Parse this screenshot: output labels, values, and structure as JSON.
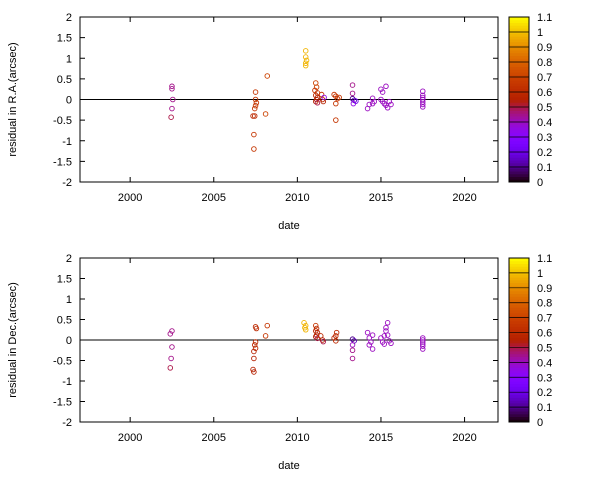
{
  "chart_data": [
    {
      "type": "scatter",
      "title": "",
      "xlabel": "date",
      "ylabel": "residual in R.A.(arcsec)",
      "xlim": [
        1997,
        2022
      ],
      "ylim": [
        -2,
        2
      ],
      "xticks": [
        "2000",
        "2005",
        "2010",
        "2015",
        "2020"
      ],
      "yticks": [
        "-2",
        "-1.5",
        "-1",
        "-0.5",
        "0",
        "0.5",
        "1",
        "1.5",
        "2"
      ],
      "reference_line": 0,
      "colorbar": {
        "range": [
          0,
          1.1
        ],
        "ticks": [
          "0",
          "0.1",
          "0.2",
          "0.3",
          "0.4",
          "0.5",
          "0.6",
          "0.7",
          "0.8",
          "0.9",
          "1",
          "1.1"
        ]
      },
      "points": [
        {
          "x": 2002.5,
          "y": 0.32,
          "c": 0.45
        },
        {
          "x": 2002.5,
          "y": 0.26,
          "c": 0.45
        },
        {
          "x": 2002.55,
          "y": 0.0,
          "c": 0.45
        },
        {
          "x": 2002.5,
          "y": -0.22,
          "c": 0.45
        },
        {
          "x": 2002.45,
          "y": -0.43,
          "c": 0.5
        },
        {
          "x": 2007.5,
          "y": 0.18,
          "c": 0.65
        },
        {
          "x": 2007.5,
          "y": 0.0,
          "c": 0.65
        },
        {
          "x": 2007.55,
          "y": -0.08,
          "c": 0.65
        },
        {
          "x": 2007.5,
          "y": -0.15,
          "c": 0.65
        },
        {
          "x": 2007.45,
          "y": -0.22,
          "c": 0.65
        },
        {
          "x": 2007.35,
          "y": -0.4,
          "c": 0.6
        },
        {
          "x": 2007.45,
          "y": -0.4,
          "c": 0.6
        },
        {
          "x": 2007.4,
          "y": -0.85,
          "c": 0.65
        },
        {
          "x": 2007.4,
          "y": -1.2,
          "c": 0.65
        },
        {
          "x": 2008.2,
          "y": 0.57,
          "c": 0.7
        },
        {
          "x": 2008.1,
          "y": -0.35,
          "c": 0.7
        },
        {
          "x": 2010.5,
          "y": 1.18,
          "c": 0.98
        },
        {
          "x": 2010.5,
          "y": 1.03,
          "c": 0.98
        },
        {
          "x": 2010.55,
          "y": 0.95,
          "c": 0.98
        },
        {
          "x": 2010.5,
          "y": 0.88,
          "c": 0.98
        },
        {
          "x": 2010.5,
          "y": 0.82,
          "c": 0.98
        },
        {
          "x": 2011.1,
          "y": 0.4,
          "c": 0.7
        },
        {
          "x": 2011.15,
          "y": 0.3,
          "c": 0.7
        },
        {
          "x": 2011.05,
          "y": 0.22,
          "c": 0.65
        },
        {
          "x": 2011.2,
          "y": 0.16,
          "c": 0.65
        },
        {
          "x": 2011.1,
          "y": 0.1,
          "c": 0.6
        },
        {
          "x": 2011.2,
          "y": 0.05,
          "c": 0.55
        },
        {
          "x": 2011.15,
          "y": 0.0,
          "c": 0.55
        },
        {
          "x": 2011.1,
          "y": -0.05,
          "c": 0.55
        },
        {
          "x": 2011.2,
          "y": -0.08,
          "c": 0.5
        },
        {
          "x": 2011.45,
          "y": 0.12,
          "c": 0.65
        },
        {
          "x": 2011.5,
          "y": 0.0,
          "c": 0.6
        },
        {
          "x": 2011.55,
          "y": -0.05,
          "c": 0.55
        },
        {
          "x": 2011.6,
          "y": 0.05,
          "c": 0.35
        },
        {
          "x": 2012.2,
          "y": 0.12,
          "c": 0.65
        },
        {
          "x": 2012.3,
          "y": 0.08,
          "c": 0.65
        },
        {
          "x": 2012.4,
          "y": 0.02,
          "c": 0.65
        },
        {
          "x": 2012.5,
          "y": 0.05,
          "c": 0.65
        },
        {
          "x": 2012.3,
          "y": -0.1,
          "c": 0.65
        },
        {
          "x": 2012.3,
          "y": -0.5,
          "c": 0.65
        },
        {
          "x": 2013.3,
          "y": 0.35,
          "c": 0.45
        },
        {
          "x": 2013.3,
          "y": 0.15,
          "c": 0.45
        },
        {
          "x": 2013.3,
          "y": 0.02,
          "c": 0.1
        },
        {
          "x": 2013.4,
          "y": -0.02,
          "c": 0.15
        },
        {
          "x": 2013.5,
          "y": -0.04,
          "c": 0.2
        },
        {
          "x": 2013.35,
          "y": -0.1,
          "c": 0.35
        },
        {
          "x": 2014.3,
          "y": -0.12,
          "c": 0.4
        },
        {
          "x": 2014.2,
          "y": -0.22,
          "c": 0.4
        },
        {
          "x": 2014.5,
          "y": 0.03,
          "c": 0.4
        },
        {
          "x": 2014.6,
          "y": -0.05,
          "c": 0.4
        },
        {
          "x": 2014.5,
          "y": -0.1,
          "c": 0.4
        },
        {
          "x": 2015.0,
          "y": 0.25,
          "c": 0.4
        },
        {
          "x": 2015.3,
          "y": 0.32,
          "c": 0.4
        },
        {
          "x": 2015.1,
          "y": 0.18,
          "c": 0.4
        },
        {
          "x": 2015.0,
          "y": 0.0,
          "c": 0.4
        },
        {
          "x": 2015.1,
          "y": -0.05,
          "c": 0.4
        },
        {
          "x": 2015.2,
          "y": -0.1,
          "c": 0.4
        },
        {
          "x": 2015.3,
          "y": -0.14,
          "c": 0.4
        },
        {
          "x": 2015.5,
          "y": -0.05,
          "c": 0.4
        },
        {
          "x": 2015.6,
          "y": -0.12,
          "c": 0.4
        },
        {
          "x": 2015.4,
          "y": -0.2,
          "c": 0.4
        },
        {
          "x": 2017.5,
          "y": 0.2,
          "c": 0.4
        },
        {
          "x": 2017.5,
          "y": 0.1,
          "c": 0.4
        },
        {
          "x": 2017.5,
          "y": 0.05,
          "c": 0.4
        },
        {
          "x": 2017.5,
          "y": 0.0,
          "c": 0.4
        },
        {
          "x": 2017.5,
          "y": -0.06,
          "c": 0.4
        },
        {
          "x": 2017.5,
          "y": -0.12,
          "c": 0.4
        },
        {
          "x": 2017.5,
          "y": -0.18,
          "c": 0.4
        }
      ]
    },
    {
      "type": "scatter",
      "title": "",
      "xlabel": "date",
      "ylabel": "residual in Dec.(arcsec)",
      "xlim": [
        1997,
        2022
      ],
      "ylim": [
        -2,
        2
      ],
      "xticks": [
        "2000",
        "2005",
        "2010",
        "2015",
        "2020"
      ],
      "yticks": [
        "-2",
        "-1.5",
        "-1",
        "-0.5",
        "0",
        "0.5",
        "1",
        "1.5",
        "2"
      ],
      "reference_line": 0,
      "colorbar": {
        "range": [
          0,
          1.1
        ],
        "ticks": [
          "0",
          "0.1",
          "0.2",
          "0.3",
          "0.4",
          "0.5",
          "0.6",
          "0.7",
          "0.8",
          "0.9",
          "1",
          "1.1"
        ]
      },
      "points": [
        {
          "x": 2002.5,
          "y": 0.22,
          "c": 0.45
        },
        {
          "x": 2002.4,
          "y": 0.15,
          "c": 0.45
        },
        {
          "x": 2002.5,
          "y": -0.17,
          "c": 0.45
        },
        {
          "x": 2002.45,
          "y": -0.45,
          "c": 0.45
        },
        {
          "x": 2002.4,
          "y": -0.68,
          "c": 0.5
        },
        {
          "x": 2007.5,
          "y": 0.32,
          "c": 0.6
        },
        {
          "x": 2007.55,
          "y": 0.28,
          "c": 0.6
        },
        {
          "x": 2007.5,
          "y": -0.05,
          "c": 0.6
        },
        {
          "x": 2007.45,
          "y": -0.12,
          "c": 0.6
        },
        {
          "x": 2007.5,
          "y": -0.2,
          "c": 0.6
        },
        {
          "x": 2007.4,
          "y": -0.28,
          "c": 0.55
        },
        {
          "x": 2007.4,
          "y": -0.45,
          "c": 0.55
        },
        {
          "x": 2007.35,
          "y": -0.72,
          "c": 0.55
        },
        {
          "x": 2007.4,
          "y": -0.78,
          "c": 0.55
        },
        {
          "x": 2008.2,
          "y": 0.35,
          "c": 0.65
        },
        {
          "x": 2008.1,
          "y": 0.1,
          "c": 0.65
        },
        {
          "x": 2010.4,
          "y": 0.42,
          "c": 0.98
        },
        {
          "x": 2010.5,
          "y": 0.35,
          "c": 0.98
        },
        {
          "x": 2010.45,
          "y": 0.3,
          "c": 0.98
        },
        {
          "x": 2010.5,
          "y": 0.25,
          "c": 0.98
        },
        {
          "x": 2011.1,
          "y": 0.35,
          "c": 0.65
        },
        {
          "x": 2011.15,
          "y": 0.28,
          "c": 0.6
        },
        {
          "x": 2011.1,
          "y": 0.22,
          "c": 0.6
        },
        {
          "x": 2011.2,
          "y": 0.18,
          "c": 0.55
        },
        {
          "x": 2011.15,
          "y": 0.12,
          "c": 0.55
        },
        {
          "x": 2011.1,
          "y": 0.08,
          "c": 0.55
        },
        {
          "x": 2011.2,
          "y": 0.04,
          "c": 0.5
        },
        {
          "x": 2011.4,
          "y": 0.1,
          "c": 0.6
        },
        {
          "x": 2011.5,
          "y": 0.0,
          "c": 0.55
        },
        {
          "x": 2011.55,
          "y": -0.04,
          "c": 0.5
        },
        {
          "x": 2012.2,
          "y": 0.05,
          "c": 0.6
        },
        {
          "x": 2012.3,
          "y": 0.1,
          "c": 0.6
        },
        {
          "x": 2012.35,
          "y": 0.18,
          "c": 0.6
        },
        {
          "x": 2012.3,
          "y": -0.02,
          "c": 0.6
        },
        {
          "x": 2013.3,
          "y": 0.02,
          "c": 0.1
        },
        {
          "x": 2013.4,
          "y": -0.02,
          "c": 0.15
        },
        {
          "x": 2013.3,
          "y": -0.12,
          "c": 0.4
        },
        {
          "x": 2013.3,
          "y": -0.25,
          "c": 0.45
        },
        {
          "x": 2013.3,
          "y": -0.45,
          "c": 0.45
        },
        {
          "x": 2014.2,
          "y": 0.18,
          "c": 0.4
        },
        {
          "x": 2014.5,
          "y": 0.12,
          "c": 0.4
        },
        {
          "x": 2014.3,
          "y": 0.05,
          "c": 0.4
        },
        {
          "x": 2014.4,
          "y": -0.05,
          "c": 0.4
        },
        {
          "x": 2014.3,
          "y": -0.12,
          "c": 0.4
        },
        {
          "x": 2014.5,
          "y": -0.22,
          "c": 0.4
        },
        {
          "x": 2015.0,
          "y": 0.05,
          "c": 0.4
        },
        {
          "x": 2015.2,
          "y": 0.1,
          "c": 0.4
        },
        {
          "x": 2015.3,
          "y": 0.22,
          "c": 0.4
        },
        {
          "x": 2015.4,
          "y": 0.42,
          "c": 0.4
        },
        {
          "x": 2015.3,
          "y": 0.3,
          "c": 0.4
        },
        {
          "x": 2015.1,
          "y": -0.05,
          "c": 0.4
        },
        {
          "x": 2015.2,
          "y": -0.1,
          "c": 0.4
        },
        {
          "x": 2015.5,
          "y": -0.02,
          "c": 0.4
        },
        {
          "x": 2015.6,
          "y": -0.08,
          "c": 0.4
        },
        {
          "x": 2015.4,
          "y": 0.12,
          "c": 0.4
        },
        {
          "x": 2017.5,
          "y": 0.05,
          "c": 0.4
        },
        {
          "x": 2017.5,
          "y": 0.0,
          "c": 0.4
        },
        {
          "x": 2017.5,
          "y": -0.05,
          "c": 0.4
        },
        {
          "x": 2017.5,
          "y": -0.1,
          "c": 0.4
        },
        {
          "x": 2017.5,
          "y": -0.15,
          "c": 0.4
        },
        {
          "x": 2017.5,
          "y": -0.22,
          "c": 0.4
        }
      ]
    }
  ]
}
